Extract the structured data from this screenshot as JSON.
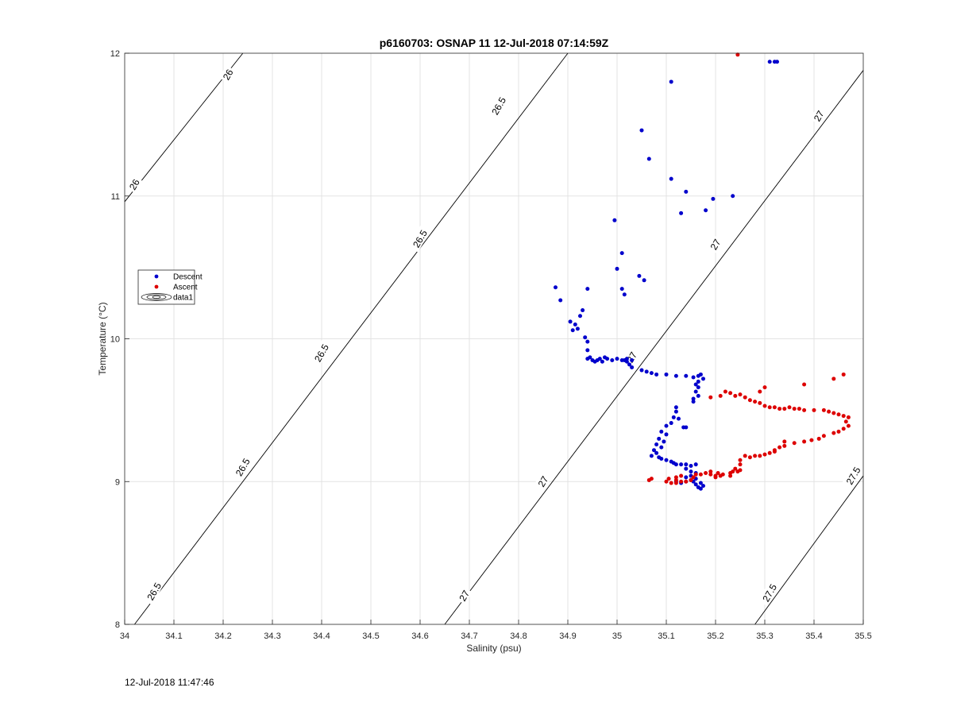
{
  "chart_data": {
    "type": "scatter",
    "title": "p6160703: OSNAP 11 12-Jul-2018 07:14:59Z",
    "xlabel": "Salinity (psu)",
    "ylabel": "Temperature (°C)",
    "xlim": [
      34,
      35.5
    ],
    "ylim": [
      8,
      12
    ],
    "xticks": [
      "34",
      "34.1",
      "34.2",
      "34.3",
      "34.4",
      "34.5",
      "34.6",
      "34.7",
      "34.8",
      "34.9",
      "35",
      "35.1",
      "35.2",
      "35.3",
      "35.4",
      "35.5"
    ],
    "yticks": [
      "8",
      "9",
      "10",
      "11",
      "12"
    ],
    "grid": true,
    "legend": {
      "placement": "left",
      "entries": [
        "Descent",
        "Ascent",
        "data1"
      ]
    },
    "contours": [
      {
        "level": "26",
        "points": [
          [
            34.0,
            10.96
          ],
          [
            34.24,
            12.0
          ]
        ]
      },
      {
        "level": "26.5",
        "points": [
          [
            34.02,
            8.0
          ],
          [
            34.9,
            12.0
          ]
        ]
      },
      {
        "level": "27",
        "points": [
          [
            34.65,
            8.0
          ],
          [
            35.5,
            11.88
          ]
        ]
      },
      {
        "level": "27.5",
        "points": [
          [
            35.28,
            8.0
          ],
          [
            35.5,
            9.04
          ]
        ]
      }
    ],
    "contour_labels": [
      {
        "text": "26",
        "s": 34.21,
        "t": 11.85
      },
      {
        "text": "26",
        "s": 34.02,
        "t": 11.08
      },
      {
        "text": "26.5",
        "s": 34.76,
        "t": 11.63
      },
      {
        "text": "26.5",
        "s": 34.6,
        "t": 10.7
      },
      {
        "text": "26.5",
        "s": 34.4,
        "t": 9.9
      },
      {
        "text": "26.5",
        "s": 34.24,
        "t": 9.1
      },
      {
        "text": "26.5",
        "s": 34.06,
        "t": 8.23
      },
      {
        "text": "27",
        "s": 35.41,
        "t": 11.56
      },
      {
        "text": "27",
        "s": 35.2,
        "t": 10.66
      },
      {
        "text": "27",
        "s": 35.03,
        "t": 9.87
      },
      {
        "text": "27",
        "s": 34.85,
        "t": 9.0
      },
      {
        "text": "27",
        "s": 34.69,
        "t": 8.2
      },
      {
        "text": "27.5",
        "s": 35.48,
        "t": 9.04
      },
      {
        "text": "27.5",
        "s": 35.31,
        "t": 8.22
      }
    ],
    "series": [
      {
        "name": "Descent",
        "color": "#0000cc",
        "points": [
          [
            35.31,
            11.94
          ],
          [
            35.32,
            11.94
          ],
          [
            35.325,
            11.94
          ],
          [
            35.11,
            11.8
          ],
          [
            35.05,
            11.46
          ],
          [
            35.065,
            11.26
          ],
          [
            35.11,
            11.12
          ],
          [
            35.14,
            11.03
          ],
          [
            35.235,
            11.0
          ],
          [
            35.195,
            10.98
          ],
          [
            35.18,
            10.9
          ],
          [
            35.13,
            10.88
          ],
          [
            34.995,
            10.83
          ],
          [
            35.01,
            10.6
          ],
          [
            35.0,
            10.49
          ],
          [
            35.045,
            10.44
          ],
          [
            35.055,
            10.41
          ],
          [
            35.01,
            10.35
          ],
          [
            35.015,
            10.31
          ],
          [
            34.875,
            10.36
          ],
          [
            34.94,
            10.35
          ],
          [
            34.885,
            10.27
          ],
          [
            34.93,
            10.2
          ],
          [
            34.925,
            10.16
          ],
          [
            34.915,
            10.1
          ],
          [
            34.905,
            10.12
          ],
          [
            34.92,
            10.07
          ],
          [
            34.91,
            10.06
          ],
          [
            34.935,
            10.01
          ],
          [
            34.94,
            9.98
          ],
          [
            34.94,
            9.92
          ],
          [
            34.945,
            9.87
          ],
          [
            34.94,
            9.86
          ],
          [
            34.95,
            9.85
          ],
          [
            34.96,
            9.85
          ],
          [
            34.97,
            9.84
          ],
          [
            34.975,
            9.87
          ],
          [
            34.98,
            9.86
          ],
          [
            34.99,
            9.85
          ],
          [
            35.0,
            9.86
          ],
          [
            34.955,
            9.84
          ],
          [
            34.965,
            9.86
          ],
          [
            35.015,
            9.85
          ],
          [
            35.02,
            9.84
          ],
          [
            35.03,
            9.85
          ],
          [
            35.025,
            9.82
          ],
          [
            35.03,
            9.8
          ],
          [
            35.01,
            9.85
          ],
          [
            35.02,
            9.86
          ],
          [
            35.05,
            9.78
          ],
          [
            35.06,
            9.77
          ],
          [
            35.07,
            9.76
          ],
          [
            35.08,
            9.75
          ],
          [
            35.1,
            9.75
          ],
          [
            35.12,
            9.74
          ],
          [
            35.14,
            9.74
          ],
          [
            35.155,
            9.73
          ],
          [
            35.165,
            9.74
          ],
          [
            35.17,
            9.75
          ],
          [
            35.175,
            9.72
          ],
          [
            35.165,
            9.7
          ],
          [
            35.16,
            9.68
          ],
          [
            35.165,
            9.66
          ],
          [
            35.16,
            9.63
          ],
          [
            35.165,
            9.6
          ],
          [
            35.155,
            9.58
          ],
          [
            35.155,
            9.56
          ],
          [
            35.12,
            9.52
          ],
          [
            35.12,
            9.49
          ],
          [
            35.115,
            9.45
          ],
          [
            35.125,
            9.44
          ],
          [
            35.11,
            9.41
          ],
          [
            35.1,
            9.39
          ],
          [
            35.135,
            9.38
          ],
          [
            35.14,
            9.38
          ],
          [
            35.09,
            9.35
          ],
          [
            35.1,
            9.33
          ],
          [
            35.085,
            9.3
          ],
          [
            35.095,
            9.28
          ],
          [
            35.08,
            9.26
          ],
          [
            35.09,
            9.24
          ],
          [
            35.075,
            9.22
          ],
          [
            35.08,
            9.2
          ],
          [
            35.07,
            9.18
          ],
          [
            35.085,
            9.17
          ],
          [
            35.09,
            9.16
          ],
          [
            35.1,
            9.15
          ],
          [
            35.11,
            9.14
          ],
          [
            35.115,
            9.13
          ],
          [
            35.12,
            9.12
          ],
          [
            35.13,
            9.12
          ],
          [
            35.14,
            9.12
          ],
          [
            35.15,
            9.11
          ],
          [
            35.16,
            9.12
          ],
          [
            35.14,
            9.09
          ],
          [
            35.15,
            9.07
          ],
          [
            35.16,
            9.06
          ],
          [
            35.15,
            9.04
          ],
          [
            35.14,
            9.03
          ],
          [
            35.15,
            9.01
          ],
          [
            35.155,
            9.0
          ],
          [
            35.16,
            8.98
          ],
          [
            35.165,
            8.96
          ],
          [
            35.17,
            8.95
          ],
          [
            35.175,
            8.97
          ],
          [
            35.17,
            8.99
          ],
          [
            35.16,
            9.02
          ],
          [
            35.14,
            9.0
          ],
          [
            35.13,
            8.99
          ],
          [
            35.12,
            9.0
          ]
        ]
      },
      {
        "name": "Ascent",
        "color": "#dd0000",
        "points": [
          [
            35.245,
            11.99
          ],
          [
            35.46,
            9.75
          ],
          [
            35.44,
            9.72
          ],
          [
            35.38,
            9.68
          ],
          [
            35.3,
            9.66
          ],
          [
            35.29,
            9.63
          ],
          [
            35.21,
            9.6
          ],
          [
            35.19,
            9.59
          ],
          [
            35.22,
            9.63
          ],
          [
            35.23,
            9.62
          ],
          [
            35.24,
            9.6
          ],
          [
            35.25,
            9.61
          ],
          [
            35.26,
            9.59
          ],
          [
            35.27,
            9.57
          ],
          [
            35.28,
            9.56
          ],
          [
            35.29,
            9.55
          ],
          [
            35.3,
            9.53
          ],
          [
            35.31,
            9.52
          ],
          [
            35.32,
            9.52
          ],
          [
            35.33,
            9.51
          ],
          [
            35.34,
            9.51
          ],
          [
            35.35,
            9.52
          ],
          [
            35.36,
            9.51
          ],
          [
            35.37,
            9.51
          ],
          [
            35.38,
            9.5
          ],
          [
            35.4,
            9.5
          ],
          [
            35.42,
            9.5
          ],
          [
            35.43,
            9.49
          ],
          [
            35.44,
            9.48
          ],
          [
            35.45,
            9.47
          ],
          [
            35.46,
            9.46
          ],
          [
            35.47,
            9.45
          ],
          [
            35.465,
            9.42
          ],
          [
            35.47,
            9.39
          ],
          [
            35.46,
            9.37
          ],
          [
            35.45,
            9.35
          ],
          [
            35.44,
            9.34
          ],
          [
            35.42,
            9.32
          ],
          [
            35.41,
            9.3
          ],
          [
            35.395,
            9.29
          ],
          [
            35.38,
            9.28
          ],
          [
            35.36,
            9.27
          ],
          [
            35.34,
            9.25
          ],
          [
            35.33,
            9.24
          ],
          [
            35.32,
            9.22
          ],
          [
            35.31,
            9.2
          ],
          [
            35.3,
            9.19
          ],
          [
            35.29,
            9.18
          ],
          [
            35.28,
            9.18
          ],
          [
            35.27,
            9.17
          ],
          [
            35.26,
            9.18
          ],
          [
            35.25,
            9.15
          ],
          [
            35.25,
            9.12
          ],
          [
            35.24,
            9.09
          ],
          [
            35.235,
            9.07
          ],
          [
            35.23,
            9.06
          ],
          [
            35.215,
            9.05
          ],
          [
            35.2,
            9.04
          ],
          [
            35.19,
            9.05
          ],
          [
            35.18,
            9.06
          ],
          [
            35.17,
            9.05
          ],
          [
            35.16,
            9.05
          ],
          [
            35.155,
            9.03
          ],
          [
            35.15,
            9.01
          ],
          [
            35.14,
            9.0
          ],
          [
            35.13,
            9.0
          ],
          [
            35.12,
            8.99
          ],
          [
            35.11,
            8.99
          ],
          [
            35.1,
            9.0
          ],
          [
            35.105,
            9.02
          ],
          [
            35.07,
            9.02
          ],
          [
            35.065,
            9.01
          ],
          [
            35.2,
            9.03
          ],
          [
            35.21,
            9.04
          ],
          [
            35.205,
            9.06
          ],
          [
            35.19,
            9.07
          ],
          [
            35.25,
            9.08
          ],
          [
            35.245,
            9.07
          ],
          [
            35.23,
            9.04
          ],
          [
            35.32,
            9.21
          ],
          [
            35.34,
            9.28
          ],
          [
            35.13,
            9.04
          ],
          [
            35.12,
            9.03
          ],
          [
            35.12,
            9.01
          ]
        ]
      }
    ]
  },
  "footer": {
    "timestamp": "12-Jul-2018 11:47:46"
  }
}
